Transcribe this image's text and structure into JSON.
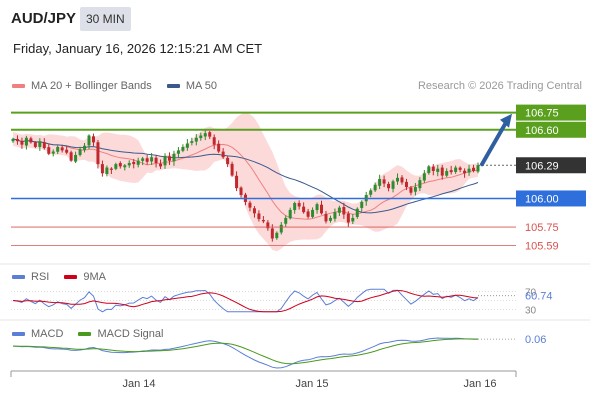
{
  "header": {
    "pair": "AUD/JPY",
    "timeframe": "30 MIN",
    "datetime": "Friday, January 16, 2026 12:15:21 AM CET"
  },
  "legend": {
    "ma20_label": "MA 20 + Bollinger Bands",
    "ma50_label": "MA 50",
    "credit": "Research © 2026 Trading Central",
    "rsi_label": "RSI",
    "rsi_ma_label": "9MA",
    "macd_label": "MACD",
    "macd_signal_label": "MACD Signal"
  },
  "colors": {
    "ma20": "#f08080",
    "ma50": "#3a5a8c",
    "bands_fill": "#fbd3d3",
    "bull": "#2e8b2e",
    "bear": "#c0282d",
    "resistance": "#5aa01e",
    "support_blue": "#2f6fdc",
    "support_red": "#d9534f",
    "current_price": "#333333",
    "arrow": "#2f5fa0",
    "rsi": "#5b7fd6",
    "rsi_ma": "#d0001a",
    "macd": "#5b7fd6",
    "macd_signal": "#4a9a1e"
  },
  "chart_data": [
    {
      "type": "candlestick",
      "y_range": [
        105.48,
        106.86
      ],
      "x_ticks": [
        "Jan 14",
        "Jan 15",
        "Jan 16"
      ],
      "levels": [
        {
          "value": 106.75,
          "label": "106.75",
          "kind": "resistance"
        },
        {
          "value": 106.6,
          "label": "106.60",
          "kind": "resistance"
        },
        {
          "value": 106.29,
          "label": "106.29",
          "kind": "current"
        },
        {
          "value": 106.0,
          "label": "106.00",
          "kind": "support-main"
        },
        {
          "value": 105.75,
          "label": "105.75",
          "kind": "support"
        },
        {
          "value": 105.59,
          "label": "105.59",
          "kind": "support"
        }
      ],
      "closes": [
        106.52,
        106.5,
        106.47,
        106.53,
        106.49,
        106.45,
        106.5,
        106.44,
        106.39,
        106.41,
        106.45,
        106.42,
        106.4,
        106.33,
        106.38,
        106.43,
        106.46,
        106.55,
        106.49,
        106.3,
        106.22,
        106.27,
        106.25,
        106.3,
        106.28,
        106.29,
        106.31,
        106.3,
        106.33,
        106.35,
        106.32,
        106.36,
        106.31,
        106.28,
        106.37,
        106.33,
        106.39,
        106.42,
        106.45,
        106.48,
        106.5,
        106.53,
        106.55,
        106.57,
        106.54,
        106.47,
        106.41,
        106.36,
        106.3,
        106.2,
        106.09,
        106.03,
        105.97,
        105.92,
        105.87,
        105.82,
        105.8,
        105.74,
        105.65,
        105.7,
        105.77,
        105.83,
        105.9,
        105.96,
        105.93,
        105.88,
        105.84,
        105.9,
        105.95,
        105.87,
        105.8,
        105.83,
        105.88,
        105.92,
        105.86,
        105.79,
        105.83,
        105.91,
        105.97,
        106.03,
        106.07,
        106.12,
        106.17,
        106.13,
        106.09,
        106.15,
        106.18,
        106.14,
        106.1,
        106.05,
        106.1,
        106.16,
        106.22,
        106.28,
        106.24,
        106.26,
        106.2,
        106.24,
        106.23,
        106.27,
        106.25,
        106.22,
        106.26,
        106.24,
        106.29
      ]
    },
    {
      "type": "line",
      "name": "RSI",
      "current_value": 60.74,
      "y_labels": [
        "70",
        "60.74",
        "30"
      ],
      "y_range": [
        20,
        80
      ]
    },
    {
      "type": "line",
      "name": "MACD",
      "current_value": 0.06,
      "y_labels": [
        "0.06"
      ]
    }
  ]
}
